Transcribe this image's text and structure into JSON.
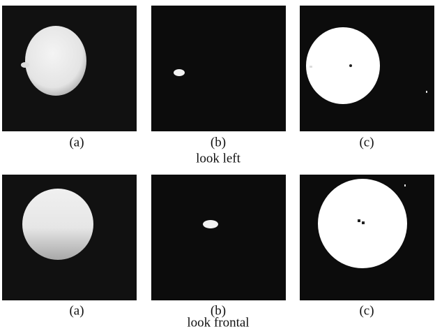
{
  "rows": [
    {
      "caption": "look left",
      "panels": [
        {
          "label": "(a)"
        },
        {
          "label": "(b)"
        },
        {
          "label": "(c)"
        }
      ]
    },
    {
      "caption": "look frontal",
      "panels": [
        {
          "label": "(a)"
        },
        {
          "label": "(b)"
        },
        {
          "label": "(c)"
        }
      ]
    }
  ]
}
